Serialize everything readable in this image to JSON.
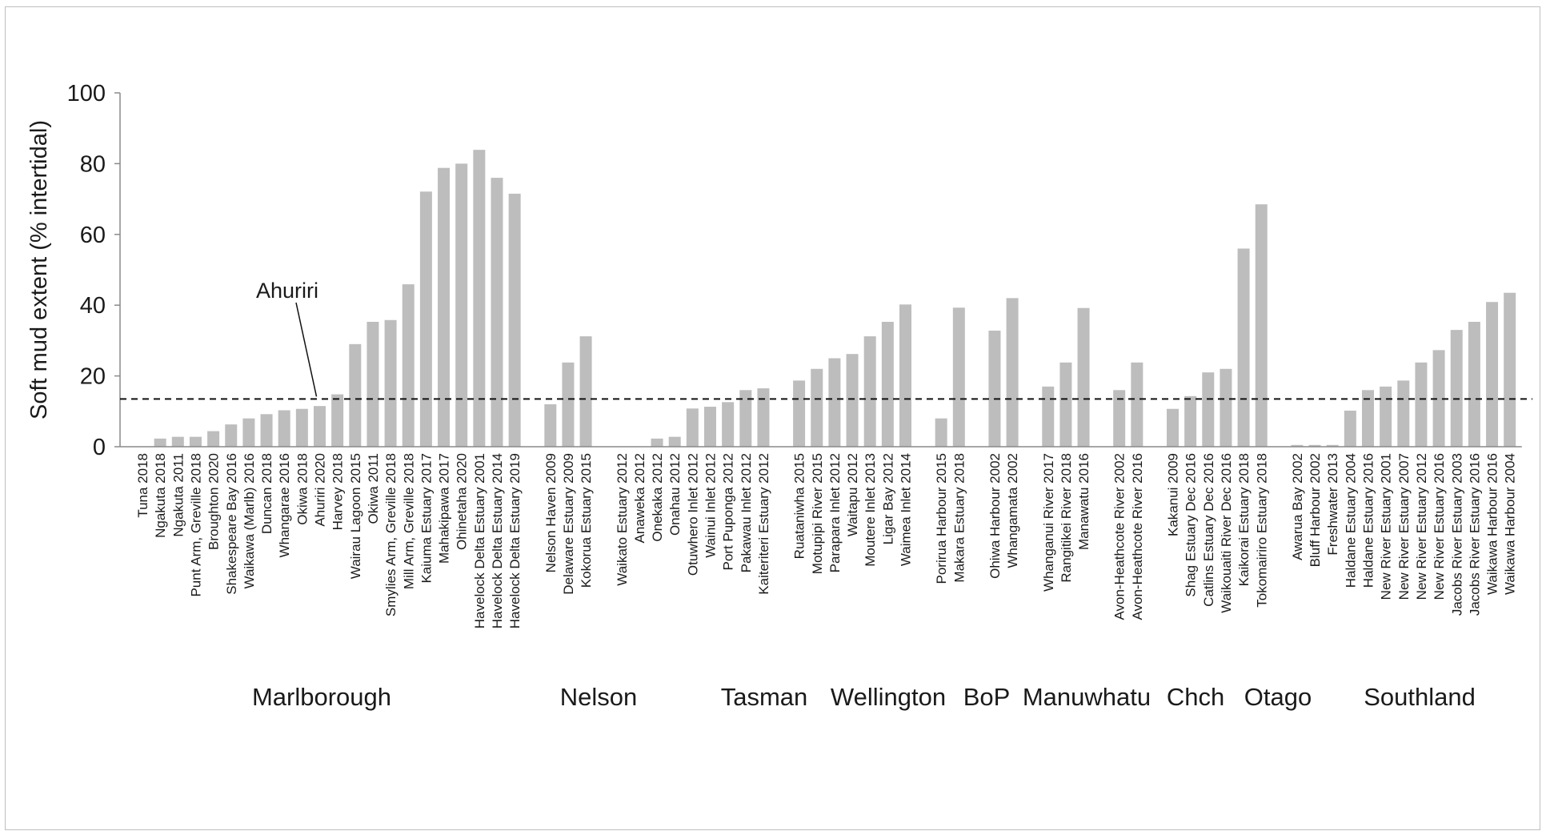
{
  "chart_data": {
    "type": "bar",
    "title": "",
    "xlabel": "",
    "ylabel": "Soft mud extent (% intertidal)",
    "ylim": [
      0,
      100
    ],
    "yticks": [
      "0",
      "20",
      "40",
      "60",
      "80",
      "100"
    ],
    "grid": false,
    "reference_line": {
      "value": 13.5,
      "style": "dashed",
      "label": "Ahuriri",
      "label_points_to": "Ahuriri 2020"
    },
    "bar_color": "#bdbdbd",
    "groups": [
      {
        "name": "Marlborough",
        "categories": [
          "Tuna 2018",
          "Ngakuta 2018",
          "Ngakuta 2011",
          "Punt Arm, Greville 2018",
          "Broughton 2020",
          "Shakespeare Bay 2016",
          "Waikawa (Marlb) 2016",
          "Duncan 2018",
          "Whangarae 2016",
          "Okiwa 2018",
          "Ahuriri 2020",
          "Harvey 2018",
          "Wairau Lagoon 2015",
          "Okiwa 2011",
          "Smylies Arm, Greville 2018",
          "Mill Arm, Greville 2018",
          "Kaiuma Estuary 2017",
          "Mahakipawa 2017",
          "Ohinetaha 2020",
          "Havelock Delta Estuary 2001",
          "Havelock Delta Estuary 2014",
          "Havelock Delta Estuary 2019"
        ],
        "values": [
          0,
          2.3,
          2.8,
          2.8,
          4.4,
          6.3,
          8,
          9.2,
          10.3,
          10.7,
          11.5,
          14.8,
          29,
          35.3,
          35.8,
          45.9,
          72.1,
          78.8,
          80,
          83.9,
          76,
          71.5
        ]
      },
      {
        "name": "Nelson",
        "categories": [
          "Nelson Haven 2009",
          "Delaware Estuary 2009",
          "Kokorua Estuary 2015"
        ],
        "values": [
          12,
          23.8,
          31.2
        ]
      },
      {
        "name": "Tasman",
        "categories": [
          "Waikato Estuary 2012",
          "Anaweka 2012",
          "Onekaka 2012",
          "Onahau 2012",
          "Otuwhero Inlet 2012",
          "Wainui Inlet 2012",
          "Port Puponga 2012",
          "Pakawau Inlet 2012",
          "Kaiteriteri Estuary 2012"
        ],
        "values": [
          0,
          0,
          2.3,
          2.8,
          10.8,
          11.3,
          12.6,
          16,
          16.5
        ]
      },
      {
        "name": "Wellington",
        "categories": [
          "Ruataniwha 2015",
          "Motupipi River 2015",
          "Parapara Inlet 2012",
          "Waitapu 2012",
          "Moutere Inlet 2013",
          "Ligar Bay 2012",
          "Waimea Inlet 2014"
        ],
        "values": [
          18.7,
          22,
          25,
          26.2,
          31.2,
          35.3,
          40.2
        ]
      },
      {
        "name": "BoP",
        "categories": [
          "Porirua Harbour 2015",
          "Makara Estuary 2018"
        ],
        "values": [
          8,
          39.3
        ]
      },
      {
        "name": "Manuwhatu",
        "categories": [
          "Ohiwa Harbour 2002",
          "Whangamata 2002"
        ],
        "values": [
          32.8,
          42
        ]
      },
      {
        "name": "Chch",
        "categories": [
          "Whanganui River 2017",
          "Rangitikei River 2018",
          "Manawatu 2016"
        ],
        "values": [
          17,
          23.8,
          39.2
        ]
      },
      {
        "name": "Otago",
        "categories": [
          "Avon-Heathcote River 2002",
          "Avon-Heathcote River 2016"
        ],
        "values": [
          16,
          23.8
        ]
      },
      {
        "name": "Southland",
        "categories": [
          "Kakanui 2009",
          "Shag Estuary Dec 2016",
          "Catlins Estuary Dec 2016",
          "Waikouaiti River Dec 2016",
          "Kaikorai Estuary 2018",
          "Tokomairiro Estuary 2018"
        ],
        "values": [
          10.7,
          14.3,
          21,
          22,
          56,
          68.5
        ]
      },
      {
        "name": "",
        "categories": [
          "Awarua Bay 2002",
          "Bluff Harbour 2002",
          "Freshwater 2013",
          "Haldane Estuary 2004",
          "Haldane Estuary 2016",
          "New River Estuary 2001",
          "New River Estuary 2007",
          "New River Estuary 2012",
          "New River Estuary 2016",
          "Jacobs River Estuary 2003",
          "Jacobs River Estuary 2016",
          "Waikawa Harbour 2016",
          "Waikawa Harbour 2004"
        ],
        "values": [
          0.5,
          0.5,
          0.5,
          10.2,
          16,
          17,
          18.7,
          23.8,
          27.3,
          33,
          35.3,
          40.9,
          43.5
        ]
      }
    ],
    "region_labels": [
      "Marlborough",
      "Nelson",
      "Tasman",
      "Wellington",
      "BoP",
      "Manuwhatu",
      "Chch",
      "Otago",
      "Southland"
    ]
  }
}
